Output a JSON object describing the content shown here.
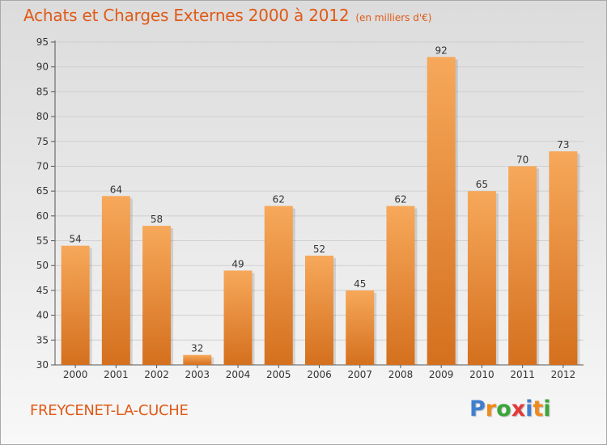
{
  "header": {
    "title": "Achats et Charges Externes 2000 à 2012",
    "subtitle": "(en milliers d'€)"
  },
  "footer": {
    "town": "FREYCENET-LA-CUCHE",
    "logo_letters": [
      "P",
      "r",
      "o",
      "x",
      "i",
      "t",
      "i"
    ],
    "logo_colors": [
      "#3f7fd0",
      "#f08a1c",
      "#3aa63a",
      "#e23a3a",
      "#3f7fd0",
      "#f08a1c",
      "#3aa63a"
    ]
  },
  "colors": {
    "title": "#e05a17",
    "bar_light": "#f7a85a",
    "bar_dark": "#d4701e",
    "grid": "#cfcfcf",
    "axis": "#555555"
  },
  "chart_data": {
    "type": "bar",
    "categories": [
      "2000",
      "2001",
      "2002",
      "2003",
      "2004",
      "2005",
      "2006",
      "2007",
      "2008",
      "2009",
      "2010",
      "2011",
      "2012"
    ],
    "values": [
      54,
      64,
      58,
      32,
      49,
      62,
      52,
      45,
      62,
      92,
      65,
      70,
      73
    ],
    "title": "Achats et Charges Externes 2000 à 2012",
    "xlabel": "",
    "ylabel": "",
    "ylim": [
      30,
      95
    ],
    "yticks": [
      30,
      35,
      40,
      45,
      50,
      55,
      60,
      65,
      70,
      75,
      80,
      85,
      90,
      95
    ],
    "grid": true,
    "legend": "none"
  }
}
